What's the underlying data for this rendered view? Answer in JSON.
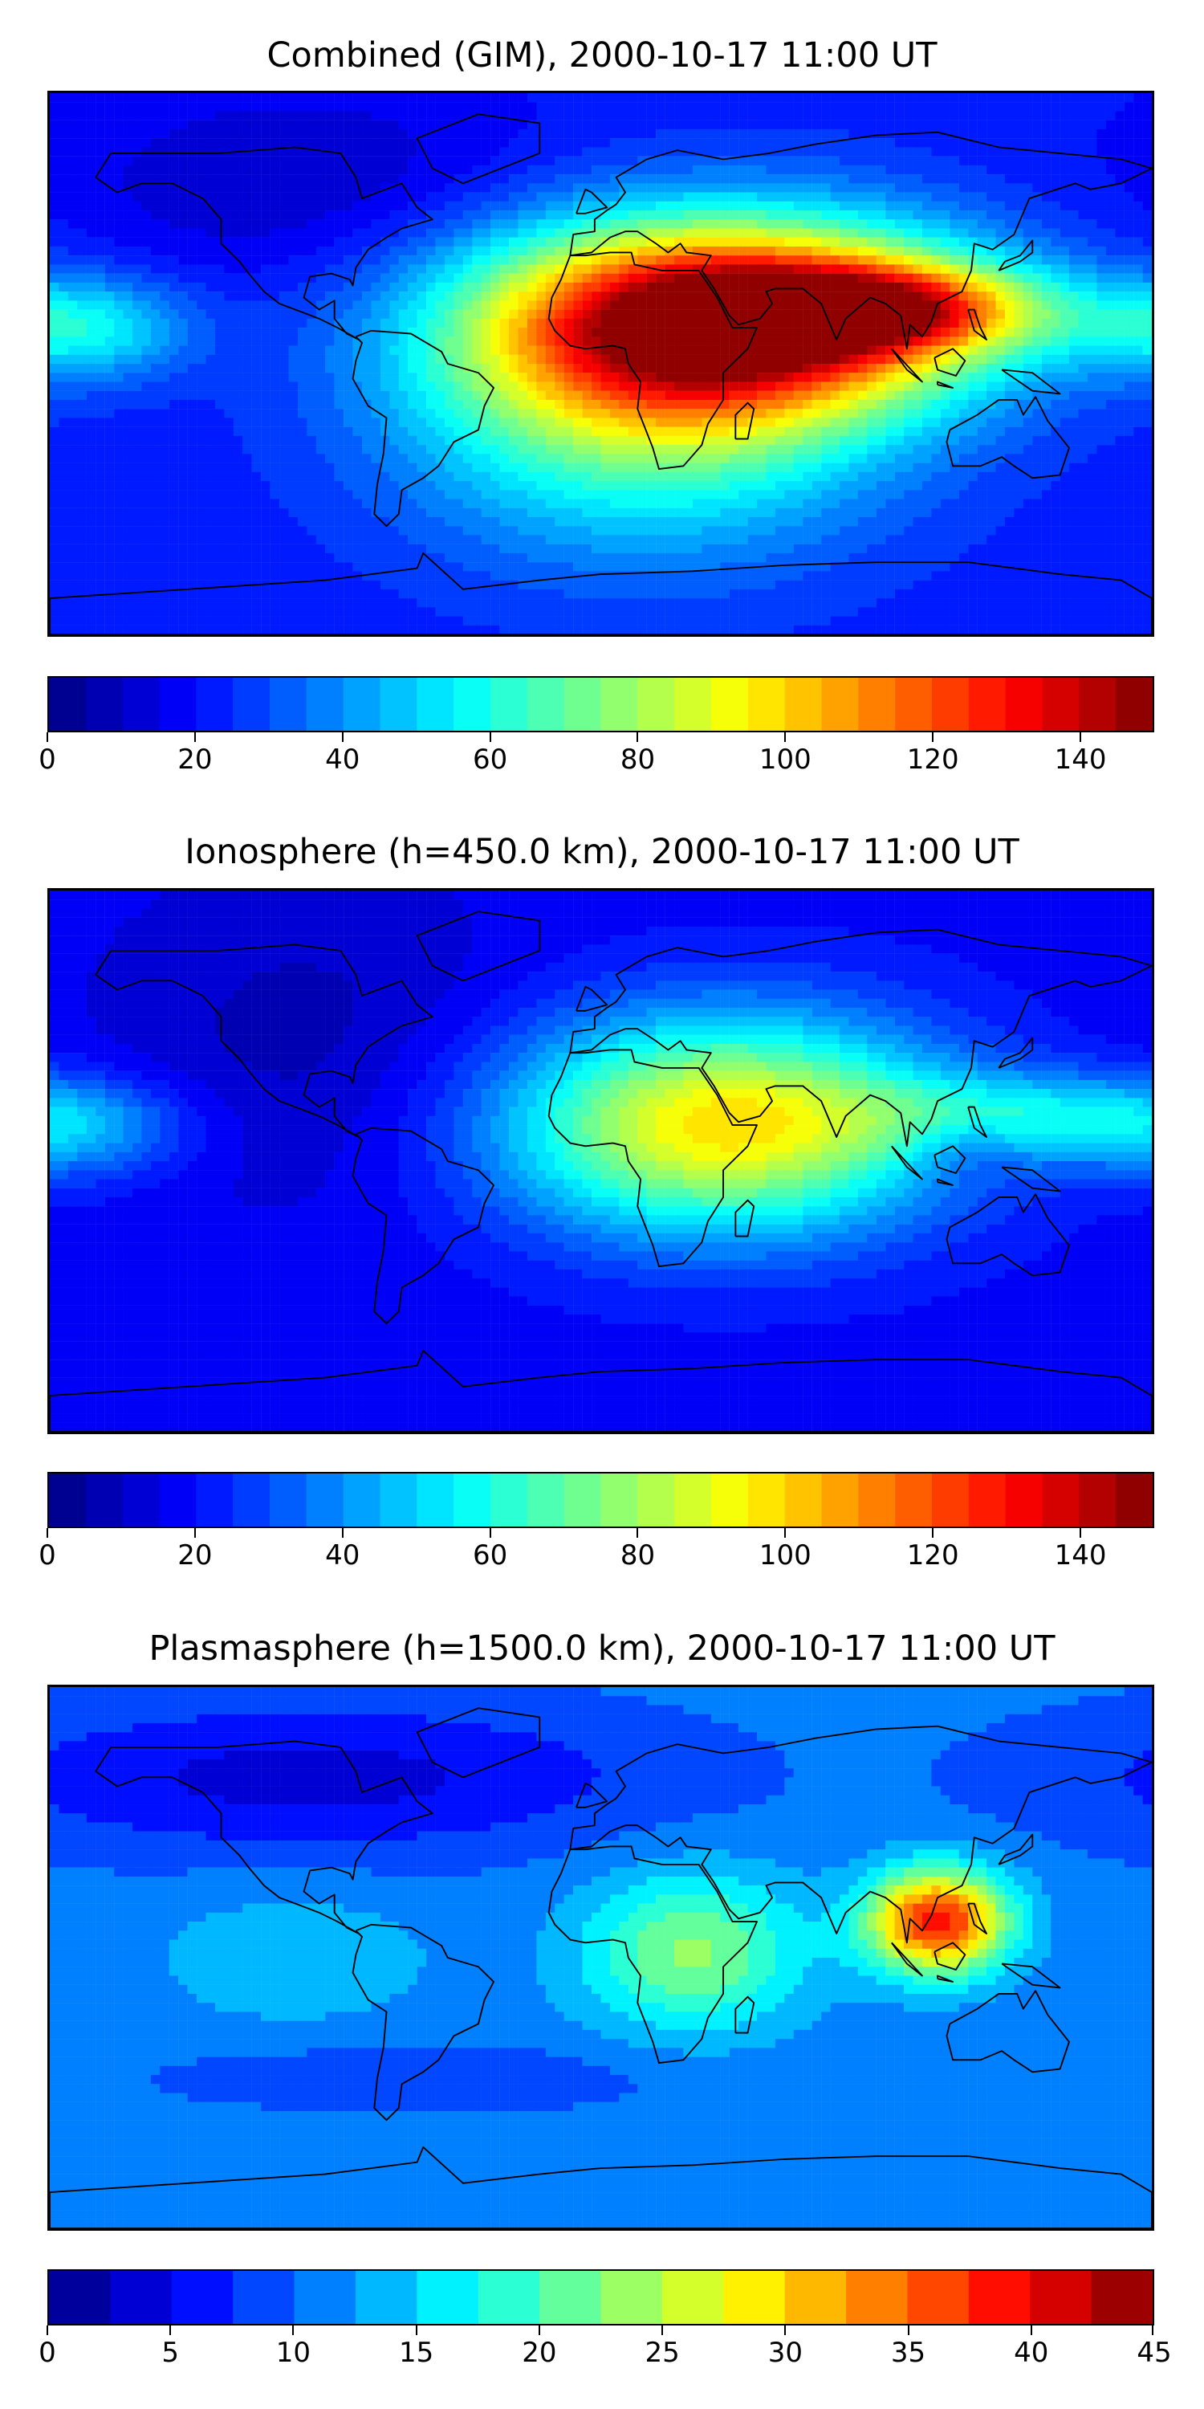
{
  "chart_data": [
    {
      "type": "heatmap",
      "title": "Combined (GIM), 2000-10-17 11:00 UT",
      "xlabel": "",
      "ylabel": "",
      "colorbar": {
        "min": 0,
        "max": 150,
        "levels": 30,
        "ticks": [
          0,
          20,
          40,
          60,
          80,
          100,
          120,
          140
        ],
        "tick_labels": [
          "0",
          "20",
          "40",
          "60",
          "80",
          "100",
          "120",
          "140"
        ]
      },
      "colormap": "jet",
      "base_value": 22,
      "features": [
        {
          "lon": 45,
          "lat": 15,
          "amp": 115,
          "slon": 55,
          "slat": 22
        },
        {
          "lon": 95,
          "lat": 18,
          "amp": 65,
          "slon": 35,
          "slat": 10
        },
        {
          "lon": 15,
          "lat": -10,
          "amp": 55,
          "slon": 55,
          "slat": 35
        },
        {
          "lon": -170,
          "lat": 12,
          "amp": 35,
          "slon": 25,
          "slat": 12
        },
        {
          "lon": -95,
          "lat": 60,
          "amp": -12,
          "slon": 60,
          "slat": 25
        }
      ]
    },
    {
      "type": "heatmap",
      "title": "Ionosphere  (h=450.0 km), 2000-10-17 11:00 UT",
      "xlabel": "",
      "ylabel": "",
      "colorbar": {
        "min": 0,
        "max": 150,
        "levels": 30,
        "ticks": [
          0,
          20,
          40,
          60,
          80,
          100,
          120,
          140
        ],
        "tick_labels": [
          "0",
          "20",
          "40",
          "60",
          "80",
          "100",
          "120",
          "140"
        ]
      },
      "colormap": "jet",
      "base_value": 18,
      "features": [
        {
          "lon": 40,
          "lat": 12,
          "amp": 80,
          "slon": 50,
          "slat": 25
        },
        {
          "lon": 140,
          "lat": 15,
          "amp": 30,
          "slon": 40,
          "slat": 10
        },
        {
          "lon": -170,
          "lat": 10,
          "amp": 22,
          "slon": 25,
          "slat": 12
        },
        {
          "lon": 118,
          "lat": 5,
          "amp": -12,
          "slon": 12,
          "slat": 8
        },
        {
          "lon": -95,
          "lat": 40,
          "amp": -10,
          "slon": 50,
          "slat": 40
        }
      ]
    },
    {
      "type": "heatmap",
      "title": "Plasmasphere (h=1500.0 km), 2000-10-17 11:00 UT",
      "xlabel": "",
      "ylabel": "",
      "colorbar": {
        "min": 0,
        "max": 45,
        "levels": 18,
        "ticks": [
          0,
          5,
          10,
          15,
          20,
          25,
          30,
          35,
          40,
          45
        ],
        "tick_labels": [
          "0",
          "5",
          "10",
          "15",
          "20",
          "25",
          "30",
          "35",
          "40",
          "45"
        ]
      },
      "colormap": "jet",
      "base_value": 11,
      "features": [
        {
          "lon": 110,
          "lat": 12,
          "amp": 28,
          "slon": 16,
          "slat": 12
        },
        {
          "lon": 30,
          "lat": 2,
          "amp": 12,
          "slon": 25,
          "slat": 18
        },
        {
          "lon": -95,
          "lat": 60,
          "amp": -7,
          "slon": 80,
          "slat": 18
        },
        {
          "lon": -60,
          "lat": -40,
          "amp": -3,
          "slon": 60,
          "slat": 8
        },
        {
          "lon": -100,
          "lat": 0,
          "amp": 4,
          "slon": 30,
          "slat": 15
        }
      ]
    }
  ]
}
